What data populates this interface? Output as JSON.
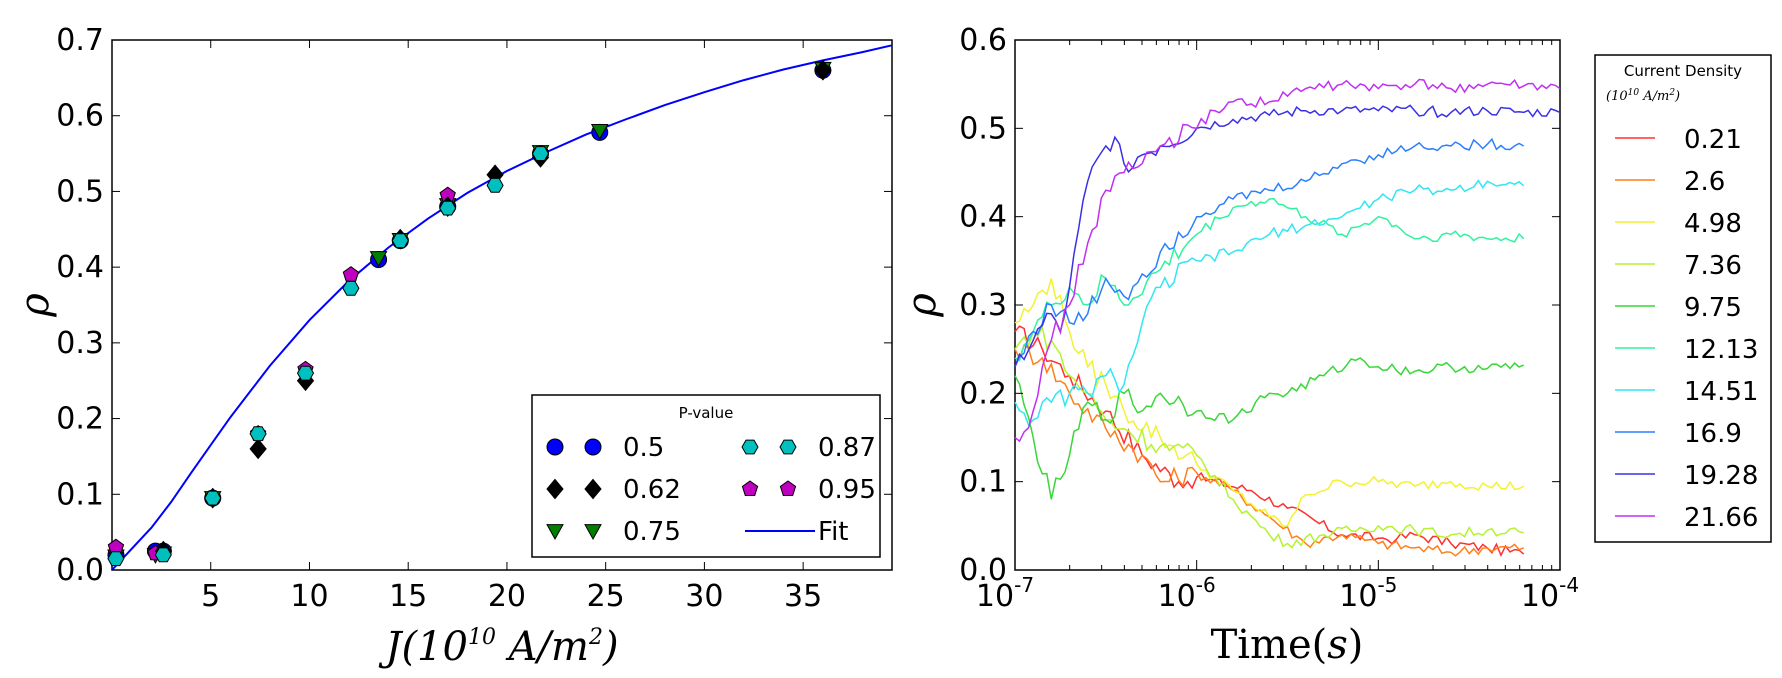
{
  "chart_data": [
    {
      "type": "scatter",
      "xlabel": "J(10^10 A/m^2)",
      "xlabel_base": "J(10",
      "xlabel_exp": "10",
      "xlabel_tail": " A/m",
      "xlabel_exp2": "2",
      "xlabel_close": ")",
      "ylabel": "ρ",
      "xlim": [
        0,
        39.5
      ],
      "ylim": [
        0.0,
        0.7
      ],
      "xticks": [
        5,
        10,
        15,
        20,
        25,
        30,
        35
      ],
      "yticks": [
        0.0,
        0.1,
        0.2,
        0.3,
        0.4,
        0.5,
        0.6,
        0.7
      ],
      "ytick_labels": [
        "0.0",
        "0.1",
        "0.2",
        "0.3",
        "0.4",
        "0.5",
        "0.6",
        "0.7"
      ],
      "legend_title": "P-value",
      "legend_position": "lower-right",
      "series": [
        {
          "name": "0.5",
          "marker": "circle",
          "color": "#0000ff",
          "x": [
            0.2,
            2.2,
            2.6,
            5.1,
            13.5,
            14.6,
            17.0,
            21.7,
            24.7,
            36.0
          ],
          "y": [
            0.02,
            0.025,
            0.025,
            0.095,
            0.41,
            0.435,
            0.48,
            0.55,
            0.578,
            0.66
          ]
        },
        {
          "name": "0.75",
          "marker": "triangle-down",
          "color": "#007f00",
          "x": [
            0.2,
            2.2,
            2.6,
            5.1,
            13.5,
            14.6,
            17.0,
            21.7,
            24.7,
            36.0
          ],
          "y": [
            0.018,
            0.02,
            0.022,
            0.095,
            0.412,
            0.436,
            0.482,
            0.552,
            0.58,
            0.662
          ]
        },
        {
          "name": "0.95",
          "marker": "pentagon",
          "color": "#bf00bf",
          "x": [
            0.2,
            2.2,
            7.4,
            9.8,
            12.1,
            17.0
          ],
          "y": [
            0.03,
            0.022,
            0.18,
            0.265,
            0.39,
            0.495
          ]
        },
        {
          "name": "0.62",
          "marker": "diamond",
          "color": "#000000",
          "x": [
            2.6,
            5.1,
            7.4,
            9.8,
            14.6,
            17.0,
            19.4,
            21.7,
            36.0
          ],
          "y": [
            0.025,
            0.095,
            0.16,
            0.25,
            0.437,
            0.48,
            0.522,
            0.545,
            0.66
          ]
        },
        {
          "name": "0.87",
          "marker": "hexagon",
          "color": "#00bfbf",
          "x": [
            0.2,
            2.6,
            5.1,
            7.4,
            9.8,
            12.1,
            14.6,
            17.0,
            19.4,
            21.7
          ],
          "y": [
            0.015,
            0.02,
            0.095,
            0.18,
            0.26,
            0.372,
            0.435,
            0.478,
            0.508,
            0.55
          ]
        },
        {
          "name": "Fit",
          "marker": "line",
          "color": "#0000ff",
          "x": [
            0,
            1,
            2,
            3,
            4,
            5,
            6,
            8,
            10,
            12,
            14,
            16,
            18,
            20,
            22,
            24,
            26,
            28,
            30,
            32,
            34,
            36,
            38,
            39.5
          ],
          "y": [
            0.0,
            0.028,
            0.056,
            0.09,
            0.128,
            0.165,
            0.202,
            0.27,
            0.33,
            0.382,
            0.426,
            0.464,
            0.498,
            0.527,
            0.552,
            0.575,
            0.595,
            0.614,
            0.631,
            0.647,
            0.661,
            0.673,
            0.684,
            0.693
          ]
        }
      ],
      "legend_order": [
        0,
        3,
        1,
        4,
        2,
        5
      ]
    },
    {
      "type": "line",
      "xscale": "log",
      "xlabel": "Time(s)",
      "xlabel_main": "Time(",
      "xlabel_var": "s",
      "xlabel_close": ")",
      "ylabel": "ρ",
      "xlim_log10": [
        -7,
        -4
      ],
      "ylim": [
        0.0,
        0.6
      ],
      "xticks_log10": [
        -7,
        -6,
        -5,
        -4
      ],
      "xtick_base": "10",
      "xtick_exps": [
        "-7",
        "-6",
        "-5",
        "-4"
      ],
      "yticks": [
        0.0,
        0.1,
        0.2,
        0.3,
        0.4,
        0.5,
        0.6
      ],
      "ytick_labels": [
        "0.0",
        "0.1",
        "0.2",
        "0.3",
        "0.4",
        "0.5",
        "0.6"
      ],
      "legend_title": "Current Density",
      "legend_subtitle_base": "(10",
      "legend_subtitle_exp": "10",
      "legend_subtitle_tail": " A/m",
      "legend_subtitle_exp2": "2",
      "legend_subtitle_close": ")",
      "legend_position": "outside-right",
      "series": [
        {
          "name": "0.21",
          "color": "#ff3030",
          "logt": [
            -7,
            -6.85,
            -6.7,
            -6.5,
            -6.3,
            -6.1,
            -6.0,
            -5.7,
            -5.5,
            -5.2,
            -5.0,
            -4.9,
            -4.8,
            -4.6,
            -4.4,
            -4.2
          ],
          "y": [
            0.27,
            0.25,
            0.22,
            0.18,
            0.13,
            0.1,
            0.105,
            0.09,
            0.07,
            0.04,
            0.036,
            0.035,
            0.04,
            0.03,
            0.025,
            0.018
          ]
        },
        {
          "name": "2.6",
          "color": "#ff7f1a",
          "logt": [
            -7,
            -6.85,
            -6.7,
            -6.5,
            -6.3,
            -6.2,
            -6.0,
            -5.8,
            -5.6,
            -5.4,
            -5.2,
            -5.0,
            -4.8,
            -4.6,
            -4.4,
            -4.2
          ],
          "y": [
            0.25,
            0.24,
            0.2,
            0.16,
            0.13,
            0.1,
            0.11,
            0.09,
            0.06,
            0.03,
            0.04,
            0.03,
            0.025,
            0.02,
            0.025,
            0.025
          ]
        },
        {
          "name": "4.98",
          "color": "#f2f230",
          "logt": [
            -7,
            -6.9,
            -6.8,
            -6.7,
            -6.6,
            -6.5,
            -6.4,
            -6.2,
            -6.0,
            -5.8,
            -5.6,
            -5.5,
            -5.4,
            -5.2,
            -5.0,
            -4.8,
            -4.6,
            -4.4,
            -4.2
          ],
          "y": [
            0.28,
            0.3,
            0.33,
            0.27,
            0.23,
            0.21,
            0.18,
            0.15,
            0.12,
            0.09,
            0.06,
            0.05,
            0.085,
            0.1,
            0.1,
            0.095,
            0.1,
            0.095,
            0.095
          ]
        },
        {
          "name": "7.36",
          "color": "#b5f230",
          "logt": [
            -7,
            -6.9,
            -6.8,
            -6.7,
            -6.6,
            -6.5,
            -6.4,
            -6.2,
            -6.0,
            -5.8,
            -5.6,
            -5.5,
            -5.3,
            -5.0,
            -4.8,
            -4.6,
            -4.4,
            -4.2
          ],
          "y": [
            0.25,
            0.27,
            0.26,
            0.22,
            0.2,
            0.17,
            0.16,
            0.14,
            0.13,
            0.08,
            0.04,
            0.03,
            0.04,
            0.05,
            0.045,
            0.04,
            0.045,
            0.042
          ]
        },
        {
          "name": "9.75",
          "color": "#3ad63a",
          "logt": [
            -7,
            -6.9,
            -6.8,
            -6.7,
            -6.6,
            -6.5,
            -6.4,
            -6.3,
            -6.2,
            -6.0,
            -5.8,
            -5.6,
            -5.5,
            -5.3,
            -5.1,
            -5.0,
            -4.8,
            -4.6,
            -4.4,
            -4.2
          ],
          "y": [
            0.22,
            0.15,
            0.08,
            0.13,
            0.19,
            0.17,
            0.2,
            0.18,
            0.2,
            0.18,
            0.17,
            0.2,
            0.2,
            0.22,
            0.24,
            0.23,
            0.225,
            0.23,
            0.228,
            0.232
          ]
        },
        {
          "name": "12.13",
          "color": "#30f2a0",
          "logt": [
            -7,
            -6.9,
            -6.8,
            -6.7,
            -6.6,
            -6.5,
            -6.4,
            -6.2,
            -6.0,
            -5.8,
            -5.6,
            -5.5,
            -5.4,
            -5.2,
            -5.0,
            -4.9,
            -4.8,
            -4.6,
            -4.4,
            -4.2
          ],
          "y": [
            0.24,
            0.27,
            0.3,
            0.32,
            0.3,
            0.33,
            0.3,
            0.34,
            0.38,
            0.41,
            0.42,
            0.41,
            0.4,
            0.38,
            0.4,
            0.39,
            0.375,
            0.38,
            0.375,
            0.375
          ]
        },
        {
          "name": "14.51",
          "color": "#30e6f2",
          "logt": [
            -7,
            -6.9,
            -6.8,
            -6.7,
            -6.6,
            -6.5,
            -6.4,
            -6.3,
            -6.2,
            -6.0,
            -5.8,
            -5.6,
            -5.4,
            -5.2,
            -5.0,
            -4.8,
            -4.6,
            -4.4,
            -4.2
          ],
          "y": [
            0.19,
            0.17,
            0.19,
            0.2,
            0.2,
            0.22,
            0.21,
            0.28,
            0.32,
            0.35,
            0.36,
            0.38,
            0.39,
            0.4,
            0.42,
            0.43,
            0.43,
            0.44,
            0.435
          ]
        },
        {
          "name": "16.9",
          "color": "#2b7fff",
          "logt": [
            -7,
            -6.9,
            -6.8,
            -6.7,
            -6.6,
            -6.5,
            -6.4,
            -6.2,
            -6.0,
            -5.8,
            -5.6,
            -5.4,
            -5.2,
            -5.0,
            -4.8,
            -4.6,
            -4.4,
            -4.2
          ],
          "y": [
            0.23,
            0.27,
            0.3,
            0.28,
            0.29,
            0.33,
            0.31,
            0.36,
            0.4,
            0.42,
            0.43,
            0.44,
            0.46,
            0.47,
            0.48,
            0.48,
            0.482,
            0.48
          ]
        },
        {
          "name": "19.28",
          "color": "#3a30e6",
          "logt": [
            -7,
            -6.9,
            -6.8,
            -6.75,
            -6.7,
            -6.6,
            -6.5,
            -6.45,
            -6.4,
            -6.3,
            -6.2,
            -6.0,
            -5.8,
            -5.6,
            -5.4,
            -5.2,
            -5.0,
            -4.8,
            -4.6,
            -4.4,
            -4.2,
            -4.0
          ],
          "y": [
            0.23,
            0.26,
            0.29,
            0.27,
            0.32,
            0.44,
            0.48,
            0.49,
            0.46,
            0.47,
            0.48,
            0.5,
            0.51,
            0.515,
            0.52,
            0.52,
            0.52,
            0.52,
            0.518,
            0.52,
            0.518,
            0.518
          ]
        },
        {
          "name": "21.66",
          "color": "#c030f0",
          "logt": [
            -7,
            -6.9,
            -6.8,
            -6.7,
            -6.6,
            -6.5,
            -6.4,
            -6.3,
            -6.2,
            -6.0,
            -5.9,
            -5.8,
            -5.6,
            -5.4,
            -5.2,
            -5.0,
            -4.8,
            -4.6,
            -4.4,
            -4.2,
            -4.0
          ],
          "y": [
            0.15,
            0.18,
            0.26,
            0.3,
            0.37,
            0.43,
            0.45,
            0.46,
            0.48,
            0.5,
            0.52,
            0.53,
            0.53,
            0.545,
            0.55,
            0.545,
            0.55,
            0.545,
            0.55,
            0.548,
            0.545
          ]
        }
      ]
    }
  ]
}
